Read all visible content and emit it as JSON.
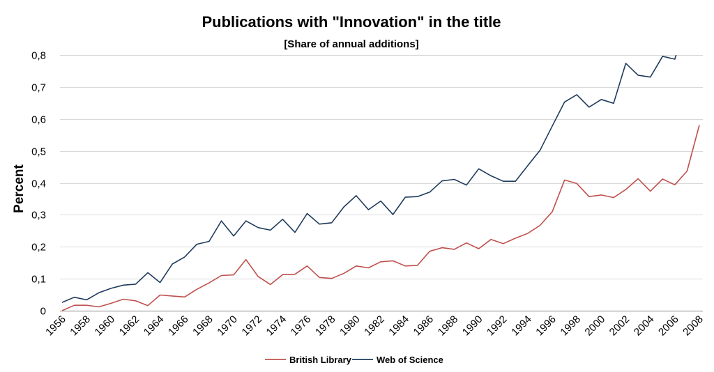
{
  "chart_data": {
    "type": "line",
    "title": "Publications with \"Innovation\" in the title",
    "subtitle": "[Share of annual additions]",
    "ylabel": "Percent",
    "ylim": [
      0,
      0.8
    ],
    "yticks": [
      0,
      0.1,
      0.2,
      0.3,
      0.4,
      0.5,
      0.6,
      0.7,
      0.8
    ],
    "ytick_labels": [
      "0",
      "0,1",
      "0,2",
      "0,3",
      "0,4",
      "0,5",
      "0,6",
      "0,7",
      "0,8"
    ],
    "xlim": [
      1956,
      2008
    ],
    "xtick_labels": [
      "1956",
      "1958",
      "1960",
      "1962",
      "1964",
      "1966",
      "1968",
      "1970",
      "1972",
      "1974",
      "1976",
      "1978",
      "1980",
      "1982",
      "1984",
      "1986",
      "1988",
      "1990",
      "1992",
      "1994",
      "1996",
      "1998",
      "2000",
      "2002",
      "2004",
      "2006",
      "2008"
    ],
    "grid": true,
    "legend": "bottom",
    "series": [
      {
        "name": "British Library",
        "color": "#c0504d",
        "points": [
          [
            1956,
            0.0
          ],
          [
            1957,
            0.017
          ],
          [
            1958,
            0.017
          ],
          [
            1959,
            0.012
          ],
          [
            1960,
            0.023
          ],
          [
            1961,
            0.036
          ],
          [
            1962,
            0.031
          ],
          [
            1963,
            0.016
          ],
          [
            1964,
            0.049
          ],
          [
            1965,
            0.046
          ],
          [
            1966,
            0.043
          ],
          [
            1967,
            0.067
          ],
          [
            1968,
            0.087
          ],
          [
            1969,
            0.11
          ],
          [
            1970,
            0.112
          ],
          [
            1971,
            0.16
          ],
          [
            1972,
            0.107
          ],
          [
            1973,
            0.082
          ],
          [
            1974,
            0.113
          ],
          [
            1975,
            0.114
          ],
          [
            1976,
            0.14
          ],
          [
            1977,
            0.104
          ],
          [
            1978,
            0.101
          ],
          [
            1979,
            0.117
          ],
          [
            1980,
            0.14
          ],
          [
            1981,
            0.134
          ],
          [
            1982,
            0.153
          ],
          [
            1983,
            0.156
          ],
          [
            1984,
            0.14
          ],
          [
            1985,
            0.142
          ],
          [
            1986,
            0.186
          ],
          [
            1987,
            0.197
          ],
          [
            1988,
            0.192
          ],
          [
            1989,
            0.212
          ],
          [
            1990,
            0.194
          ],
          [
            1991,
            0.223
          ],
          [
            1992,
            0.21
          ],
          [
            1993,
            0.227
          ],
          [
            1994,
            0.242
          ],
          [
            1995,
            0.267
          ],
          [
            1996,
            0.31
          ],
          [
            1997,
            0.409
          ],
          [
            1998,
            0.398
          ],
          [
            1999,
            0.357
          ],
          [
            2000,
            0.362
          ],
          [
            2001,
            0.354
          ],
          [
            2002,
            0.379
          ],
          [
            2003,
            0.413
          ],
          [
            2004,
            0.374
          ],
          [
            2005,
            0.412
          ],
          [
            2006,
            0.394
          ],
          [
            2007,
            0.437
          ],
          [
            2008,
            0.581
          ]
        ]
      },
      {
        "name": "Web of Science",
        "color": "#1f3b5c",
        "points": [
          [
            1956,
            0.026
          ],
          [
            1957,
            0.042
          ],
          [
            1958,
            0.034
          ],
          [
            1959,
            0.056
          ],
          [
            1960,
            0.07
          ],
          [
            1961,
            0.08
          ],
          [
            1962,
            0.083
          ],
          [
            1963,
            0.119
          ],
          [
            1964,
            0.088
          ],
          [
            1965,
            0.146
          ],
          [
            1966,
            0.168
          ],
          [
            1967,
            0.208
          ],
          [
            1968,
            0.217
          ],
          [
            1969,
            0.281
          ],
          [
            1970,
            0.234
          ],
          [
            1971,
            0.281
          ],
          [
            1972,
            0.26
          ],
          [
            1973,
            0.252
          ],
          [
            1974,
            0.286
          ],
          [
            1975,
            0.245
          ],
          [
            1976,
            0.304
          ],
          [
            1977,
            0.271
          ],
          [
            1978,
            0.275
          ],
          [
            1979,
            0.325
          ],
          [
            1980,
            0.36
          ],
          [
            1981,
            0.316
          ],
          [
            1982,
            0.343
          ],
          [
            1983,
            0.301
          ],
          [
            1984,
            0.355
          ],
          [
            1985,
            0.357
          ],
          [
            1986,
            0.371
          ],
          [
            1987,
            0.406
          ],
          [
            1988,
            0.411
          ],
          [
            1989,
            0.393
          ],
          [
            1990,
            0.444
          ],
          [
            1991,
            0.422
          ],
          [
            1992,
            0.405
          ],
          [
            1993,
            0.405
          ],
          [
            1994,
            0.454
          ],
          [
            1995,
            0.502
          ],
          [
            1996,
            0.578
          ],
          [
            1997,
            0.653
          ],
          [
            1998,
            0.676
          ],
          [
            1999,
            0.637
          ],
          [
            2000,
            0.661
          ],
          [
            2001,
            0.649
          ],
          [
            2002,
            0.774
          ],
          [
            2003,
            0.737
          ],
          [
            2004,
            0.731
          ],
          [
            2005,
            0.796
          ],
          [
            2006,
            0.787
          ],
          [
            2006.1,
            0.8
          ]
        ]
      }
    ]
  }
}
